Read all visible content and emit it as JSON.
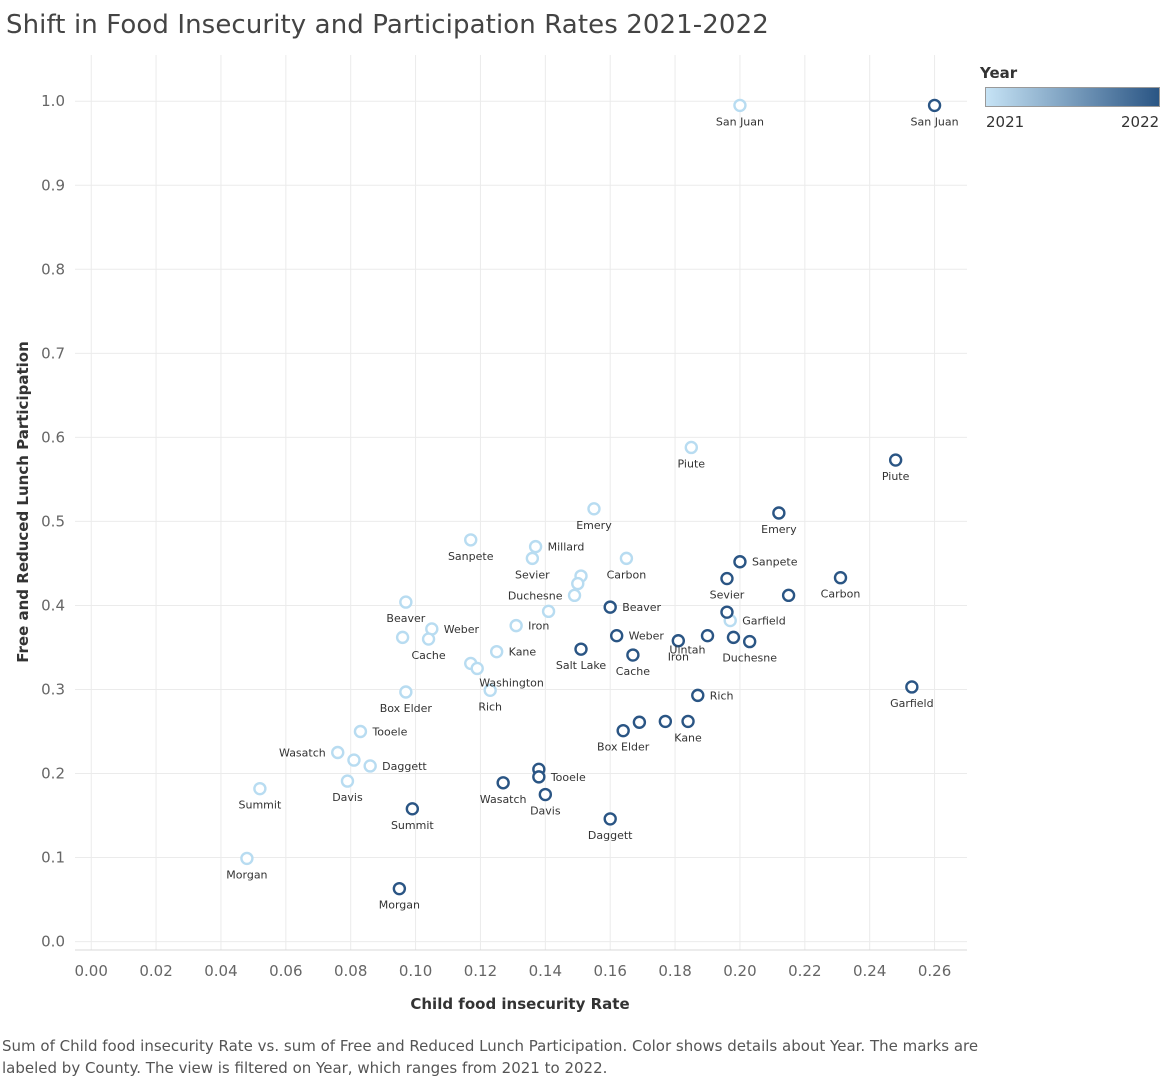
{
  "chart_data": {
    "type": "scatter",
    "title": "Shift in Food Insecurity and Participation Rates 2021-2022",
    "xlabel": "Child food insecurity Rate",
    "ylabel": "Free and Reduced Lunch Participation",
    "xlim": [
      -0.005,
      0.27
    ],
    "ylim": [
      -0.01,
      1.055
    ],
    "xticks": [
      "0.00",
      "0.02",
      "0.04",
      "0.06",
      "0.08",
      "0.10",
      "0.12",
      "0.14",
      "0.16",
      "0.18",
      "0.20",
      "0.22",
      "0.24",
      "0.26"
    ],
    "yticks": [
      "0.0",
      "0.1",
      "0.2",
      "0.3",
      "0.4",
      "0.5",
      "0.6",
      "0.7",
      "0.8",
      "0.9",
      "1.0"
    ],
    "grid": true,
    "legend": {
      "title": "Year",
      "min_label": "2021",
      "max_label": "2022",
      "color_min": "#c6e3f5",
      "color_max": "#2a5584",
      "placement": "top-right"
    },
    "series": [
      {
        "name": "2021",
        "color": "#b8dcf1",
        "points": [
          {
            "county": "San Juan",
            "x": 0.2,
            "y": 0.995,
            "label_pos": "below"
          },
          {
            "county": "Piute",
            "x": 0.185,
            "y": 0.588,
            "label_pos": "below"
          },
          {
            "county": "Emery",
            "x": 0.155,
            "y": 0.515,
            "label_pos": "below"
          },
          {
            "county": "Sanpete",
            "x": 0.117,
            "y": 0.478,
            "label_pos": "below"
          },
          {
            "county": "Millard",
            "x": 0.137,
            "y": 0.47,
            "label_pos": "right"
          },
          {
            "county": "Sevier",
            "x": 0.136,
            "y": 0.456,
            "label_pos": "below"
          },
          {
            "county": "Carbon",
            "x": 0.165,
            "y": 0.456,
            "label_pos": "below"
          },
          {
            "county": "",
            "x": 0.151,
            "y": 0.435,
            "label_pos": "none"
          },
          {
            "county": "",
            "x": 0.15,
            "y": 0.426,
            "label_pos": "none"
          },
          {
            "county": "Duchesne",
            "x": 0.149,
            "y": 0.412,
            "label_pos": "left"
          },
          {
            "county": "Beaver",
            "x": 0.097,
            "y": 0.404,
            "label_pos": "below"
          },
          {
            "county": "",
            "x": 0.141,
            "y": 0.393,
            "label_pos": "none"
          },
          {
            "county": "Iron",
            "x": 0.131,
            "y": 0.376,
            "label_pos": "right"
          },
          {
            "county": "Garfield",
            "x": 0.197,
            "y": 0.382,
            "label_pos": "right"
          },
          {
            "county": "Weber",
            "x": 0.105,
            "y": 0.372,
            "label_pos": "right"
          },
          {
            "county": "",
            "x": 0.096,
            "y": 0.362,
            "label_pos": "none"
          },
          {
            "county": "Cache",
            "x": 0.104,
            "y": 0.36,
            "label_pos": "below"
          },
          {
            "county": "Kane",
            "x": 0.125,
            "y": 0.345,
            "label_pos": "right"
          },
          {
            "county": "",
            "x": 0.117,
            "y": 0.331,
            "label_pos": "none"
          },
          {
            "county": "Washington",
            "x": 0.119,
            "y": 0.325,
            "label_pos": "below-right"
          },
          {
            "county": "Box Elder",
            "x": 0.097,
            "y": 0.297,
            "label_pos": "below"
          },
          {
            "county": "Rich",
            "x": 0.123,
            "y": 0.299,
            "label_pos": "below"
          },
          {
            "county": "Tooele",
            "x": 0.083,
            "y": 0.25,
            "label_pos": "right"
          },
          {
            "county": "Wasatch",
            "x": 0.076,
            "y": 0.225,
            "label_pos": "left"
          },
          {
            "county": "",
            "x": 0.081,
            "y": 0.216,
            "label_pos": "none"
          },
          {
            "county": "Daggett",
            "x": 0.086,
            "y": 0.209,
            "label_pos": "right"
          },
          {
            "county": "Davis",
            "x": 0.079,
            "y": 0.191,
            "label_pos": "below"
          },
          {
            "county": "Summit",
            "x": 0.052,
            "y": 0.182,
            "label_pos": "below"
          },
          {
            "county": "Morgan",
            "x": 0.048,
            "y": 0.099,
            "label_pos": "below"
          }
        ]
      },
      {
        "name": "2022",
        "color": "#2a5584",
        "points": [
          {
            "county": "San Juan",
            "x": 0.26,
            "y": 0.995,
            "label_pos": "below"
          },
          {
            "county": "Piute",
            "x": 0.248,
            "y": 0.573,
            "label_pos": "below"
          },
          {
            "county": "Emery",
            "x": 0.212,
            "y": 0.51,
            "label_pos": "below"
          },
          {
            "county": "Sanpete",
            "x": 0.2,
            "y": 0.452,
            "label_pos": "right"
          },
          {
            "county": "Sevier",
            "x": 0.196,
            "y": 0.432,
            "label_pos": "below"
          },
          {
            "county": "Carbon",
            "x": 0.231,
            "y": 0.433,
            "label_pos": "below"
          },
          {
            "county": "",
            "x": 0.215,
            "y": 0.412,
            "label_pos": "none"
          },
          {
            "county": "Beaver",
            "x": 0.16,
            "y": 0.398,
            "label_pos": "right"
          },
          {
            "county": "",
            "x": 0.196,
            "y": 0.392,
            "label_pos": "none"
          },
          {
            "county": "Weber",
            "x": 0.162,
            "y": 0.364,
            "label_pos": "right"
          },
          {
            "county": "Iron",
            "x": 0.181,
            "y": 0.358,
            "label_pos": "below"
          },
          {
            "county": "Uintah",
            "x": 0.19,
            "y": 0.364,
            "label_pos": "below-left"
          },
          {
            "county": "",
            "x": 0.198,
            "y": 0.362,
            "label_pos": "none"
          },
          {
            "county": "Duchesne",
            "x": 0.203,
            "y": 0.357,
            "label_pos": "below"
          },
          {
            "county": "Salt Lake",
            "x": 0.151,
            "y": 0.348,
            "label_pos": "below"
          },
          {
            "county": "Cache",
            "x": 0.167,
            "y": 0.341,
            "label_pos": "below"
          },
          {
            "county": "Garfield",
            "x": 0.253,
            "y": 0.303,
            "label_pos": "below"
          },
          {
            "county": "Rich",
            "x": 0.187,
            "y": 0.293,
            "label_pos": "right"
          },
          {
            "county": "",
            "x": 0.169,
            "y": 0.261,
            "label_pos": "none"
          },
          {
            "county": "",
            "x": 0.177,
            "y": 0.262,
            "label_pos": "none"
          },
          {
            "county": "Kane",
            "x": 0.184,
            "y": 0.262,
            "label_pos": "below"
          },
          {
            "county": "Box Elder",
            "x": 0.164,
            "y": 0.251,
            "label_pos": "below"
          },
          {
            "county": "",
            "x": 0.138,
            "y": 0.205,
            "label_pos": "none"
          },
          {
            "county": "Tooele",
            "x": 0.138,
            "y": 0.196,
            "label_pos": "right"
          },
          {
            "county": "Wasatch",
            "x": 0.127,
            "y": 0.189,
            "label_pos": "below"
          },
          {
            "county": "Davis",
            "x": 0.14,
            "y": 0.175,
            "label_pos": "below"
          },
          {
            "county": "Summit",
            "x": 0.099,
            "y": 0.158,
            "label_pos": "below"
          },
          {
            "county": "Daggett",
            "x": 0.16,
            "y": 0.146,
            "label_pos": "below"
          },
          {
            "county": "Morgan",
            "x": 0.095,
            "y": 0.063,
            "label_pos": "below"
          }
        ]
      }
    ]
  },
  "caption": "Sum of Child food insecurity Rate vs. sum of Free and Reduced Lunch Participation.  Color shows details about Year.  The marks are labeled by County. The view is filtered on Year, which ranges from 2021 to 2022."
}
